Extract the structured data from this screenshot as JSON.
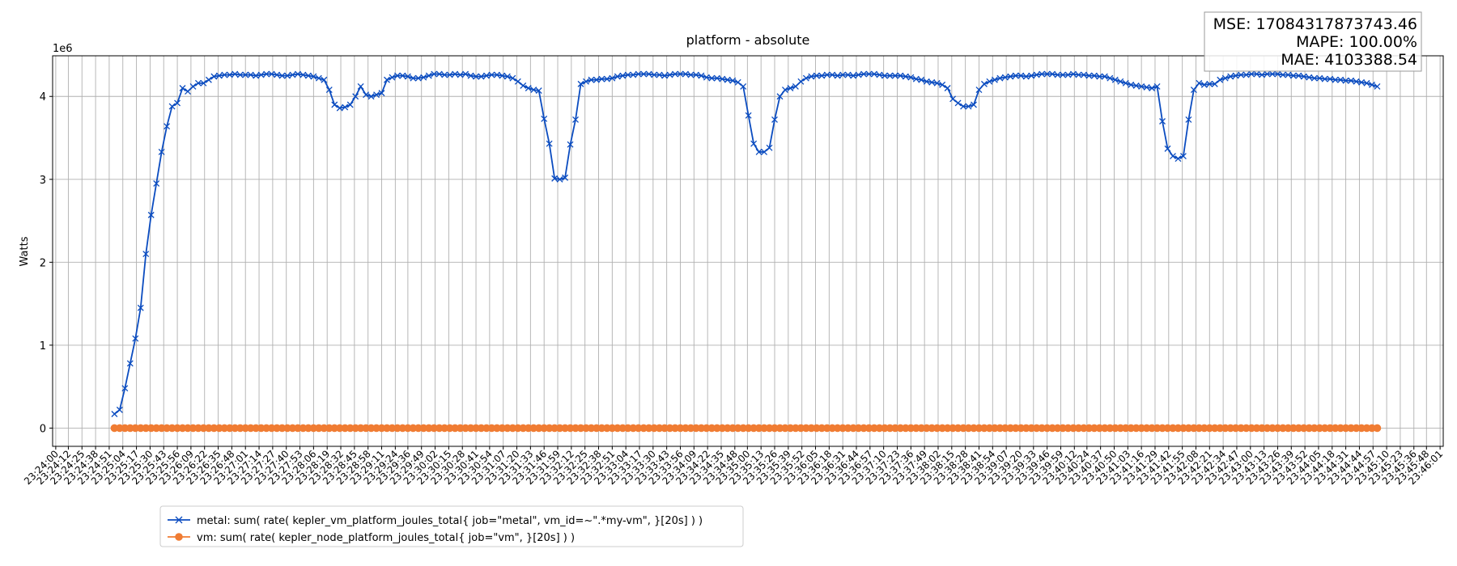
{
  "chart_data": {
    "type": "line",
    "title": "platform - absolute",
    "ylabel": "Watts",
    "y_offset_text": "1e6",
    "annotations": [
      "MSE: 17084317873743.46",
      "MAPE: 100.00%",
      "MAE: 4103388.54"
    ],
    "grid": true,
    "legend_position": "lower left",
    "xlim": [
      "23:23:57",
      "23:46:04"
    ],
    "ylim": [
      -0.22,
      4.49
    ],
    "yticks": [
      0,
      1,
      2,
      3,
      4
    ],
    "xticks": [
      "23:24:00",
      "23:24:12",
      "23:24:25",
      "23:24:38",
      "23:24:51",
      "23:25:04",
      "23:25:17",
      "23:25:30",
      "23:25:43",
      "23:25:56",
      "23:26:09",
      "23:26:22",
      "23:26:35",
      "23:26:48",
      "23:27:01",
      "23:27:14",
      "23:27:27",
      "23:27:40",
      "23:27:53",
      "23:28:06",
      "23:28:19",
      "23:28:32",
      "23:28:45",
      "23:28:58",
      "23:29:11",
      "23:29:24",
      "23:29:36",
      "23:29:49",
      "23:30:02",
      "23:30:15",
      "23:30:28",
      "23:30:41",
      "23:30:54",
      "23:31:07",
      "23:31:20",
      "23:31:33",
      "23:31:46",
      "23:31:59",
      "23:32:12",
      "23:32:25",
      "23:32:38",
      "23:32:51",
      "23:33:04",
      "23:33:17",
      "23:33:30",
      "23:33:43",
      "23:33:56",
      "23:34:09",
      "23:34:22",
      "23:34:35",
      "23:34:48",
      "23:35:00",
      "23:35:13",
      "23:35:26",
      "23:35:39",
      "23:35:52",
      "23:36:05",
      "23:36:18",
      "23:36:31",
      "23:36:44",
      "23:36:57",
      "23:37:10",
      "23:37:23",
      "23:37:36",
      "23:37:49",
      "23:38:02",
      "23:38:15",
      "23:38:28",
      "23:38:41",
      "23:38:54",
      "23:39:07",
      "23:39:20",
      "23:39:33",
      "23:39:46",
      "23:39:59",
      "23:40:12",
      "23:40:24",
      "23:40:37",
      "23:40:50",
      "23:41:03",
      "23:41:16",
      "23:41:29",
      "23:41:42",
      "23:41:55",
      "23:42:08",
      "23:42:21",
      "23:42:34",
      "23:42:47",
      "23:43:00",
      "23:43:13",
      "23:43:26",
      "23:43:39",
      "23:43:52",
      "23:44:05",
      "23:44:18",
      "23:44:31",
      "23:44:44",
      "23:44:57",
      "23:45:10",
      "23:45:23",
      "23:45:36",
      "23:45:48",
      "23:46:01"
    ],
    "x": [
      "23:24:56",
      "23:25:01",
      "23:25:06",
      "23:25:11",
      "23:25:16",
      "23:25:21",
      "23:25:26",
      "23:25:31",
      "23:25:36",
      "23:25:41",
      "23:25:46",
      "23:25:51",
      "23:25:56",
      "23:26:01",
      "23:26:06",
      "23:26:11",
      "23:26:16",
      "23:26:21",
      "23:26:26",
      "23:26:31",
      "23:26:36",
      "23:26:41",
      "23:26:46",
      "23:26:51",
      "23:26:56",
      "23:27:01",
      "23:27:06",
      "23:27:11",
      "23:27:16",
      "23:27:21",
      "23:27:26",
      "23:27:31",
      "23:27:36",
      "23:27:41",
      "23:27:46",
      "23:27:51",
      "23:27:56",
      "23:28:01",
      "23:28:06",
      "23:28:11",
      "23:28:16",
      "23:28:21",
      "23:28:26",
      "23:28:31",
      "23:28:36",
      "23:28:41",
      "23:28:46",
      "23:28:51",
      "23:28:56",
      "23:29:01",
      "23:29:06",
      "23:29:11",
      "23:29:16",
      "23:29:21",
      "23:29:26",
      "23:29:31",
      "23:29:36",
      "23:29:41",
      "23:29:46",
      "23:29:51",
      "23:29:56",
      "23:30:01",
      "23:30:06",
      "23:30:11",
      "23:30:16",
      "23:30:21",
      "23:30:26",
      "23:30:31",
      "23:30:36",
      "23:30:41",
      "23:30:46",
      "23:30:51",
      "23:30:56",
      "23:31:01",
      "23:31:06",
      "23:31:11",
      "23:31:16",
      "23:31:21",
      "23:31:26",
      "23:31:31",
      "23:31:36",
      "23:31:41",
      "23:31:46",
      "23:31:51",
      "23:31:56",
      "23:32:01",
      "23:32:06",
      "23:32:11",
      "23:32:16",
      "23:32:21",
      "23:32:26",
      "23:32:31",
      "23:32:36",
      "23:32:41",
      "23:32:46",
      "23:32:51",
      "23:32:56",
      "23:33:01",
      "23:33:06",
      "23:33:11",
      "23:33:16",
      "23:33:21",
      "23:33:26",
      "23:33:31",
      "23:33:36",
      "23:33:41",
      "23:33:46",
      "23:33:51",
      "23:33:56",
      "23:34:01",
      "23:34:06",
      "23:34:11",
      "23:34:16",
      "23:34:21",
      "23:34:26",
      "23:34:31",
      "23:34:36",
      "23:34:41",
      "23:34:46",
      "23:34:51",
      "23:34:56",
      "23:35:01",
      "23:35:06",
      "23:35:11",
      "23:35:16",
      "23:35:21",
      "23:35:26",
      "23:35:31",
      "23:35:36",
      "23:35:41",
      "23:35:46",
      "23:35:51",
      "23:35:56",
      "23:36:01",
      "23:36:06",
      "23:36:11",
      "23:36:16",
      "23:36:21",
      "23:36:26",
      "23:36:31",
      "23:36:36",
      "23:36:41",
      "23:36:46",
      "23:36:51",
      "23:36:56",
      "23:37:01",
      "23:37:06",
      "23:37:11",
      "23:37:16",
      "23:37:21",
      "23:37:26",
      "23:37:31",
      "23:37:36",
      "23:37:41",
      "23:37:46",
      "23:37:51",
      "23:37:56",
      "23:38:01",
      "23:38:06",
      "23:38:11",
      "23:38:16",
      "23:38:21",
      "23:38:26",
      "23:38:31",
      "23:38:36",
      "23:38:41",
      "23:38:46",
      "23:38:51",
      "23:38:56",
      "23:39:01",
      "23:39:06",
      "23:39:11",
      "23:39:16",
      "23:39:21",
      "23:39:26",
      "23:39:31",
      "23:39:36",
      "23:39:41",
      "23:39:46",
      "23:39:51",
      "23:39:56",
      "23:40:01",
      "23:40:06",
      "23:40:11",
      "23:40:16",
      "23:40:21",
      "23:40:26",
      "23:40:31",
      "23:40:36",
      "23:40:41",
      "23:40:46",
      "23:40:51",
      "23:40:56",
      "23:41:01",
      "23:41:06",
      "23:41:11",
      "23:41:16",
      "23:41:21",
      "23:41:26",
      "23:41:31",
      "23:41:36",
      "23:41:41",
      "23:41:46",
      "23:41:51",
      "23:41:56",
      "23:42:01",
      "23:42:06",
      "23:42:11",
      "23:42:16",
      "23:42:21",
      "23:42:26",
      "23:42:31",
      "23:42:36",
      "23:42:41",
      "23:42:46",
      "23:42:51",
      "23:42:56",
      "23:43:01",
      "23:43:06",
      "23:43:11",
      "23:43:16",
      "23:43:21",
      "23:43:26",
      "23:43:31",
      "23:43:36",
      "23:43:41",
      "23:43:46",
      "23:43:51",
      "23:43:56",
      "23:44:01",
      "23:44:06",
      "23:44:11",
      "23:44:16",
      "23:44:21",
      "23:44:26",
      "23:44:31",
      "23:44:36",
      "23:44:41",
      "23:44:46",
      "23:44:51",
      "23:44:56",
      "23:45:01"
    ],
    "series": [
      {
        "name": "metal: sum( rate( kepler_vm_platform_joules_total{ job=\"metal\", vm_id=~\".*my-vm\", }[20s] ) )",
        "color": "#0b4cc0",
        "marker": "x",
        "values": [
          0.17,
          0.22,
          0.48,
          0.78,
          1.08,
          1.45,
          2.1,
          2.57,
          2.95,
          3.33,
          3.64,
          3.88,
          3.92,
          4.1,
          4.06,
          4.12,
          4.16,
          4.16,
          4.2,
          4.24,
          4.25,
          4.26,
          4.26,
          4.27,
          4.26,
          4.26,
          4.26,
          4.25,
          4.26,
          4.27,
          4.27,
          4.26,
          4.25,
          4.25,
          4.26,
          4.27,
          4.26,
          4.25,
          4.24,
          4.22,
          4.2,
          4.08,
          3.9,
          3.86,
          3.87,
          3.9,
          4.0,
          4.12,
          4.02,
          4.0,
          4.02,
          4.04,
          4.2,
          4.23,
          4.25,
          4.25,
          4.24,
          4.22,
          4.22,
          4.23,
          4.25,
          4.27,
          4.27,
          4.26,
          4.26,
          4.27,
          4.26,
          4.27,
          4.25,
          4.24,
          4.24,
          4.25,
          4.26,
          4.26,
          4.25,
          4.24,
          4.22,
          4.18,
          4.13,
          4.1,
          4.08,
          4.07,
          3.73,
          3.43,
          3.01,
          3.0,
          3.02,
          3.42,
          3.72,
          4.15,
          4.18,
          4.2,
          4.2,
          4.21,
          4.21,
          4.22,
          4.24,
          4.25,
          4.26,
          4.26,
          4.27,
          4.27,
          4.27,
          4.26,
          4.26,
          4.25,
          4.26,
          4.27,
          4.27,
          4.27,
          4.26,
          4.26,
          4.25,
          4.23,
          4.22,
          4.22,
          4.21,
          4.2,
          4.19,
          4.17,
          4.12,
          3.77,
          3.43,
          3.33,
          3.33,
          3.38,
          3.72,
          4.0,
          4.08,
          4.1,
          4.12,
          4.18,
          4.22,
          4.24,
          4.25,
          4.25,
          4.26,
          4.26,
          4.25,
          4.26,
          4.26,
          4.25,
          4.26,
          4.27,
          4.27,
          4.27,
          4.26,
          4.25,
          4.25,
          4.25,
          4.25,
          4.24,
          4.23,
          4.21,
          4.2,
          4.18,
          4.17,
          4.16,
          4.14,
          4.1,
          3.97,
          3.92,
          3.88,
          3.88,
          3.9,
          4.08,
          4.15,
          4.18,
          4.2,
          4.22,
          4.23,
          4.24,
          4.25,
          4.25,
          4.24,
          4.25,
          4.26,
          4.27,
          4.27,
          4.27,
          4.26,
          4.26,
          4.26,
          4.27,
          4.26,
          4.26,
          4.25,
          4.25,
          4.24,
          4.24,
          4.22,
          4.2,
          4.18,
          4.16,
          4.14,
          4.13,
          4.12,
          4.11,
          4.1,
          4.12,
          3.7,
          3.37,
          3.28,
          3.25,
          3.28,
          3.72,
          4.08,
          4.16,
          4.14,
          4.15,
          4.15,
          4.2,
          4.22,
          4.24,
          4.25,
          4.26,
          4.26,
          4.27,
          4.27,
          4.26,
          4.27,
          4.27,
          4.27,
          4.26,
          4.26,
          4.25,
          4.25,
          4.24,
          4.23,
          4.22,
          4.22,
          4.21,
          4.21,
          4.2,
          4.2,
          4.19,
          4.19,
          4.18,
          4.17,
          4.16,
          4.14,
          4.12
        ]
      },
      {
        "name": "vm: sum( rate( kepler_node_platform_joules_total{ job=\"vm\", }[20s] ) )",
        "color": "#f07c33",
        "marker": "o",
        "values": [
          0,
          0,
          0,
          0,
          0,
          0,
          0,
          0,
          0,
          0,
          0,
          0,
          0,
          0,
          0,
          0,
          0,
          0,
          0,
          0,
          0,
          0,
          0,
          0,
          0,
          0,
          0,
          0,
          0,
          0,
          0,
          0,
          0,
          0,
          0,
          0,
          0,
          0,
          0,
          0,
          0,
          0,
          0,
          0,
          0,
          0,
          0,
          0,
          0,
          0,
          0,
          0,
          0,
          0,
          0,
          0,
          0,
          0,
          0,
          0,
          0,
          0,
          0,
          0,
          0,
          0,
          0,
          0,
          0,
          0,
          0,
          0,
          0,
          0,
          0,
          0,
          0,
          0,
          0,
          0,
          0,
          0,
          0,
          0,
          0,
          0,
          0,
          0,
          0,
          0,
          0,
          0,
          0,
          0,
          0,
          0,
          0,
          0,
          0,
          0,
          0,
          0,
          0,
          0,
          0,
          0,
          0,
          0,
          0,
          0,
          0,
          0,
          0,
          0,
          0,
          0,
          0,
          0,
          0,
          0,
          0,
          0,
          0,
          0,
          0,
          0,
          0,
          0,
          0,
          0,
          0,
          0,
          0,
          0,
          0,
          0,
          0,
          0,
          0,
          0,
          0,
          0,
          0,
          0,
          0,
          0,
          0,
          0,
          0,
          0,
          0,
          0,
          0,
          0,
          0,
          0,
          0,
          0,
          0,
          0,
          0,
          0,
          0,
          0,
          0,
          0,
          0,
          0,
          0,
          0,
          0,
          0,
          0,
          0,
          0,
          0,
          0,
          0,
          0,
          0,
          0,
          0,
          0,
          0,
          0,
          0,
          0,
          0,
          0,
          0,
          0,
          0,
          0,
          0,
          0,
          0,
          0,
          0,
          0,
          0,
          0,
          0,
          0,
          0,
          0,
          0,
          0,
          0,
          0,
          0,
          0,
          0,
          0,
          0,
          0,
          0,
          0,
          0,
          0,
          0,
          0,
          0,
          0,
          0,
          0,
          0,
          0,
          0,
          0,
          0,
          0,
          0,
          0,
          0,
          0,
          0,
          0,
          0,
          0,
          0,
          0,
          0
        ]
      }
    ]
  }
}
